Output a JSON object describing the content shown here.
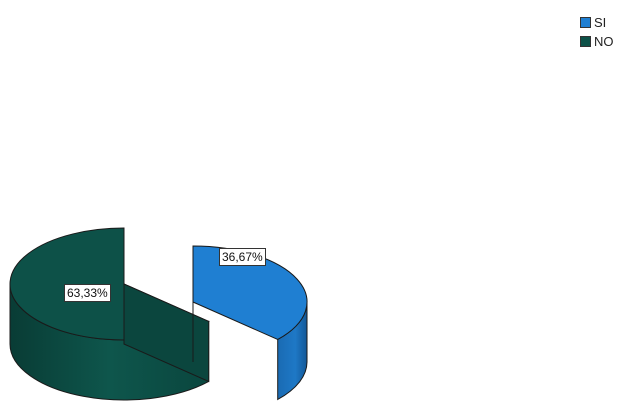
{
  "chart_data": {
    "type": "pie",
    "title": "",
    "style": "3d-exploded",
    "slices": [
      {
        "label": "SI",
        "value": 36.67,
        "display": "36,67%",
        "color": "#1f7fd2"
      },
      {
        "label": "NO",
        "value": 63.33,
        "display": "63,33%",
        "color": "#0d5148"
      }
    ],
    "legend_position": "top-right"
  }
}
